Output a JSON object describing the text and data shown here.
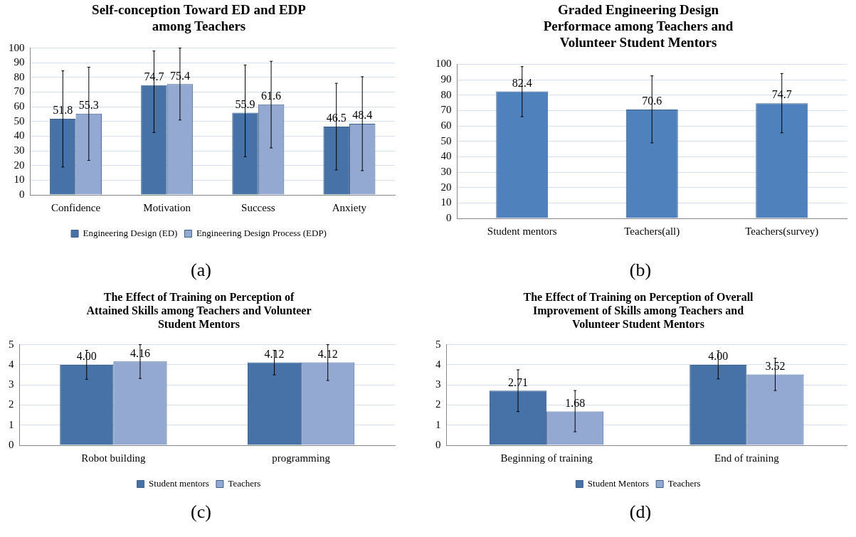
{
  "chart_data": [
    {
      "type": "bar",
      "title": "Self-conception Toward ED and EDP among Teachers",
      "categories": [
        "Confidence",
        "Motivation",
        "Success",
        "Anxiety"
      ],
      "series": [
        {
          "name": "Engineering Design (ED)",
          "color": "#4672a8",
          "values": [
            51.8,
            74.7,
            55.9,
            46.5
          ],
          "errors": [
            [
              19,
              84.5
            ],
            [
              42.5,
              98
            ],
            [
              26,
              88.5
            ],
            [
              17,
              76
            ]
          ]
        },
        {
          "name": "Engineering Design Process (EDP)",
          "color": "#94a9d1",
          "values": [
            55.3,
            75.4,
            61.6,
            48.4
          ],
          "errors": [
            [
              23.5,
              87
            ],
            [
              51,
              100
            ],
            [
              32,
              91
            ],
            [
              16.5,
              80.5
            ]
          ]
        }
      ],
      "ylim": [
        0,
        100
      ],
      "yticks": [
        0,
        10,
        20,
        30,
        40,
        50,
        60,
        70,
        80,
        90,
        100
      ],
      "grid": "y",
      "legend": "bottom",
      "data_labels": true,
      "annotations": [
        "(a)"
      ]
    },
    {
      "type": "bar",
      "title": "Graded Engineering Design Performace among Teachers and Volunteer Student Mentors",
      "categories": [
        "Student mentors",
        "Teachers(all)",
        "Teachers(survey)"
      ],
      "series": [
        {
          "color": "#4f81bd",
          "values": [
            82.4,
            70.6,
            74.7
          ],
          "errors": [
            [
              66,
              98.5
            ],
            [
              49,
              92.5
            ],
            [
              55.5,
              94
            ]
          ]
        }
      ],
      "ylim": [
        0,
        100
      ],
      "yticks": [
        0,
        10,
        20,
        30,
        40,
        50,
        60,
        70,
        80,
        90,
        100
      ],
      "grid": "y",
      "data_labels": true,
      "annotations": [
        "(b)"
      ]
    },
    {
      "type": "bar",
      "title": "The Effect of Training on Perception of Attained Skills among Teachers and Volunteer Student Mentors",
      "categories": [
        "Robot building",
        "programming"
      ],
      "series": [
        {
          "name": "Student mentors",
          "color": "#4672a8",
          "values": [
            4.0,
            4.12
          ],
          "value_labels": [
            "4.00",
            "4.12"
          ],
          "errors": [
            [
              3.28,
              4.72
            ],
            [
              3.5,
              4.72
            ]
          ]
        },
        {
          "name": "Teachers",
          "color": "#94a9d1",
          "values": [
            4.16,
            4.12
          ],
          "value_labels": [
            "4.16",
            "4.12"
          ],
          "errors": [
            [
              3.32,
              5
            ],
            [
              3.22,
              5
            ]
          ]
        }
      ],
      "ylim": [
        0,
        5
      ],
      "yticks": [
        0,
        1,
        2,
        3,
        4,
        5
      ],
      "grid": "y",
      "legend": "bottom",
      "annotations": [
        "(c)"
      ]
    },
    {
      "type": "bar",
      "title": "The Effect of Training on Perception of Overall Improvement of Skills among Teachers and Volunteer Student Mentors",
      "categories": [
        "Beginning of training",
        "End of training"
      ],
      "series": [
        {
          "name": "Student Mentors",
          "color": "#4672a8",
          "values": [
            2.71,
            4.0
          ],
          "value_labels": [
            "2.71",
            "4.00"
          ],
          "errors": [
            [
              1.67,
              3.75
            ],
            [
              3.3,
              4.7
            ]
          ]
        },
        {
          "name": "Teachers",
          "color": "#94a9d1",
          "values": [
            1.68,
            3.52
          ],
          "value_labels": [
            "1.68",
            "3.52"
          ],
          "errors": [
            [
              0.67,
              2.72
            ],
            [
              2.72,
              4.33
            ]
          ]
        }
      ],
      "ylim": [
        0,
        5
      ],
      "yticks": [
        0,
        1,
        2,
        3,
        4,
        5
      ],
      "grid": "y",
      "legend": "bottom",
      "annotations": [
        "(d)"
      ]
    }
  ]
}
